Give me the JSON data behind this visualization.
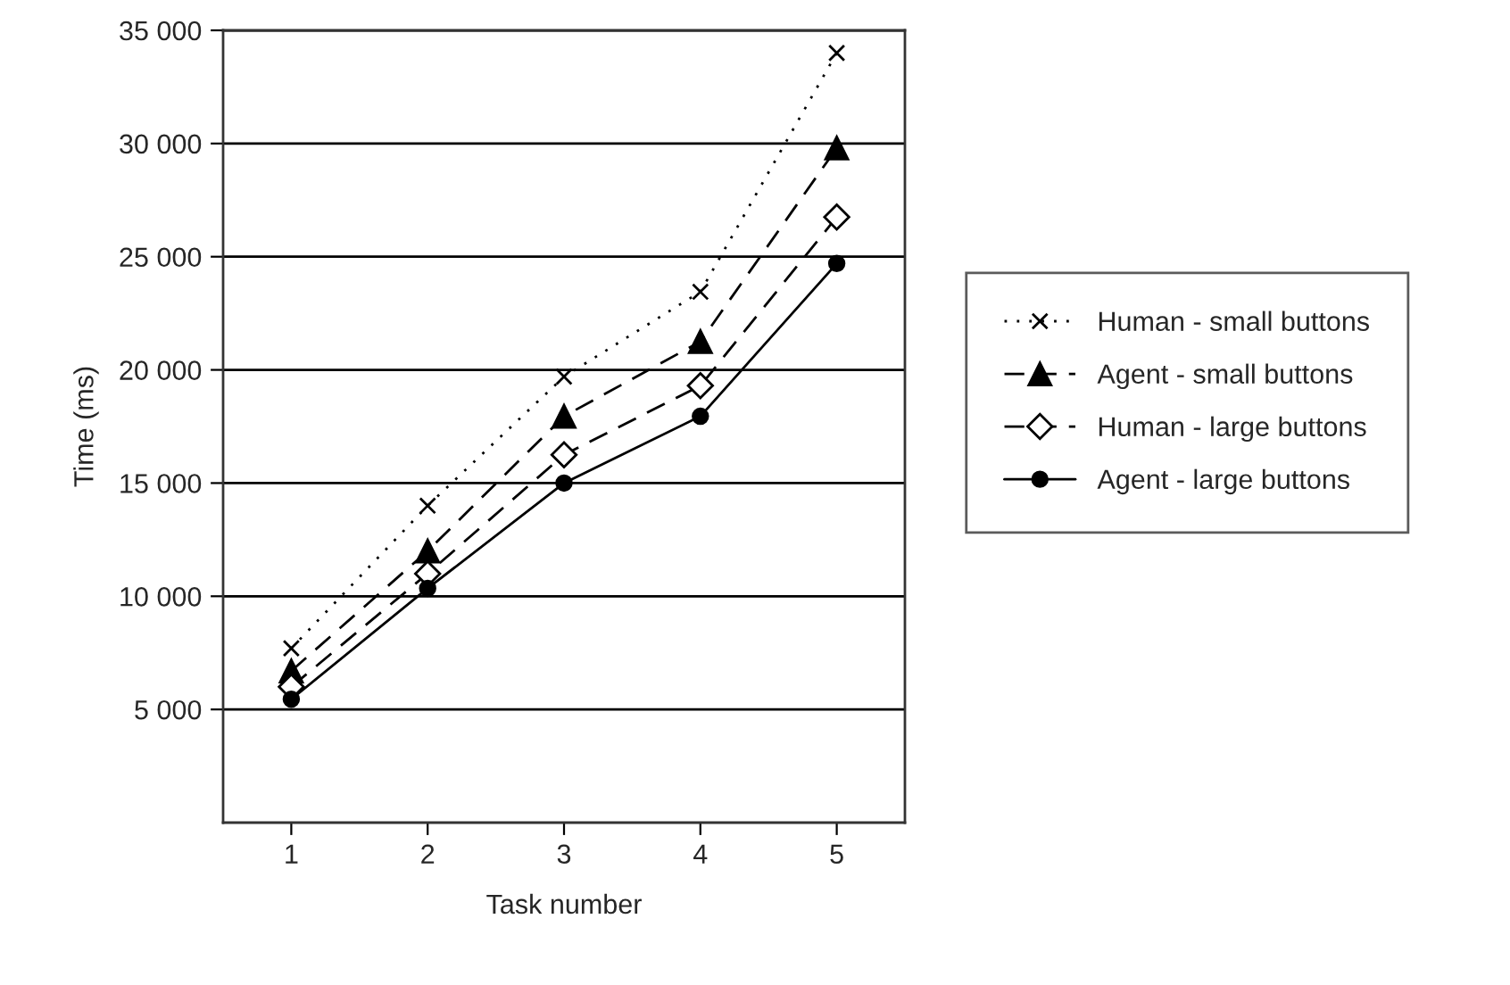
{
  "chart_data": {
    "type": "line",
    "xlabel": "Task number",
    "ylabel": "Time (ms)",
    "categories": [
      "1",
      "2",
      "3",
      "4",
      "5"
    ],
    "series": [
      {
        "name": "Human - small buttons",
        "color": "#000000",
        "marker": "cross",
        "line_style": "dotted",
        "values": [
          7700,
          14000,
          19700,
          23450,
          34000
        ]
      },
      {
        "name": "Agent - small buttons",
        "color": "#000000",
        "marker": "triangle",
        "line_style": "dashed",
        "values": [
          6700,
          12000,
          17950,
          21250,
          29800
        ]
      },
      {
        "name": "Human - large buttons",
        "color": "#000000",
        "marker": "diamond",
        "line_style": "dashed",
        "values": [
          6000,
          11000,
          16250,
          19300,
          26750
        ]
      },
      {
        "name": "Agent - large buttons",
        "color": "#000000",
        "marker": "circle",
        "line_style": "solid",
        "values": [
          5450,
          10350,
          15000,
          17950,
          24700
        ]
      }
    ],
    "ylim": [
      0,
      35000
    ],
    "yticks": [
      {
        "value": 5000,
        "label": "5 000"
      },
      {
        "value": 10000,
        "label": "10 000"
      },
      {
        "value": 15000,
        "label": "15 000"
      },
      {
        "value": 20000,
        "label": "20 000"
      },
      {
        "value": 25000,
        "label": "25 000"
      },
      {
        "value": 30000,
        "label": "30 000"
      },
      {
        "value": 35000,
        "label": "35 000"
      }
    ],
    "grid": "y",
    "legend": "right"
  }
}
